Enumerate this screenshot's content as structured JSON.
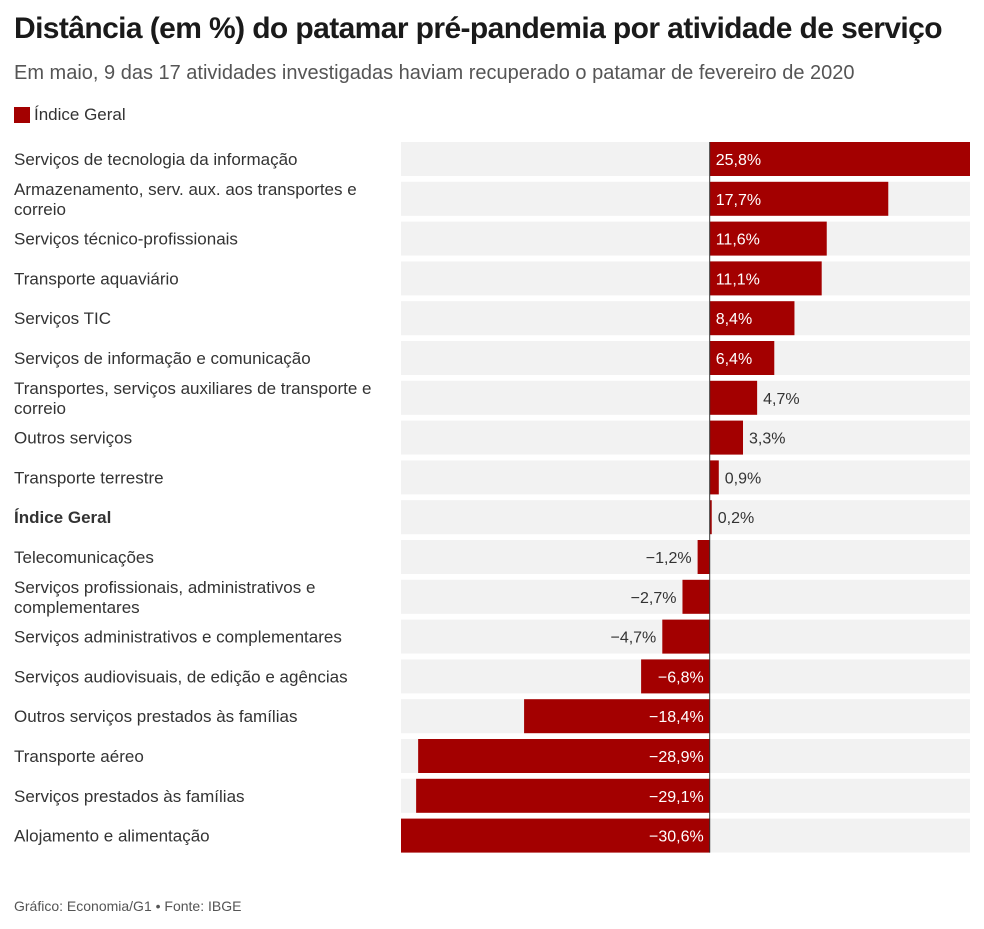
{
  "title": "Distância (em %) do patamar pré-pandemia por atividade de serviço",
  "subtitle": "Em maio, 9 das 17 atividades investigadas haviam recuperado o patamar de fevereiro de 2020",
  "legend_label": "Índice Geral",
  "source": "Gráfico: Economia/G1 • Fonte: IBGE",
  "colors": {
    "bar": "#a30000",
    "track": "#f2f2f2",
    "zero_line": "#333333",
    "label_inside": "#ffffff",
    "label_outside": "#333333"
  },
  "chart_data": {
    "type": "bar",
    "orientation": "horizontal",
    "title": "Distância (em %) do patamar pré-pandemia por atividade de serviço",
    "xlabel": "",
    "ylabel": "",
    "xlim": [
      -30.6,
      25.8
    ],
    "categories": [
      "Serviços de tecnologia da informação",
      "Armazenamento, serv. aux. aos transportes e correio",
      "Serviços técnico-profissionais",
      "Transporte aquaviário",
      "Serviços TIC",
      "Serviços de informação e comunicação",
      "Transportes, serviços auxiliares de transporte e correio",
      "Outros serviços",
      "Transporte terrestre",
      "Índice Geral",
      "Telecomunicações",
      "Serviços profissionais, administrativos e complementares",
      "Serviços administrativos e complementares",
      "Serviços audiovisuais, de edição e agências",
      "Outros serviços prestados às famílias",
      "Transporte aéreo",
      "Serviços prestados às famílias",
      "Alojamento e alimentação"
    ],
    "values": [
      25.8,
      17.7,
      11.6,
      11.1,
      8.4,
      6.4,
      4.7,
      3.3,
      0.9,
      0.2,
      -1.2,
      -2.7,
      -4.7,
      -6.8,
      -18.4,
      -28.9,
      -29.1,
      -30.6
    ],
    "value_labels": [
      "25,8%",
      "17,7%",
      "11,6%",
      "11,1%",
      "8,4%",
      "6,4%",
      "4,7%",
      "3,3%",
      "0,9%",
      "0,2%",
      "−1,2%",
      "−2,7%",
      "−4,7%",
      "−6,8%",
      "−18,4%",
      "−28,9%",
      "−29,1%",
      "−30,6%"
    ],
    "highlight": "Índice Geral"
  }
}
